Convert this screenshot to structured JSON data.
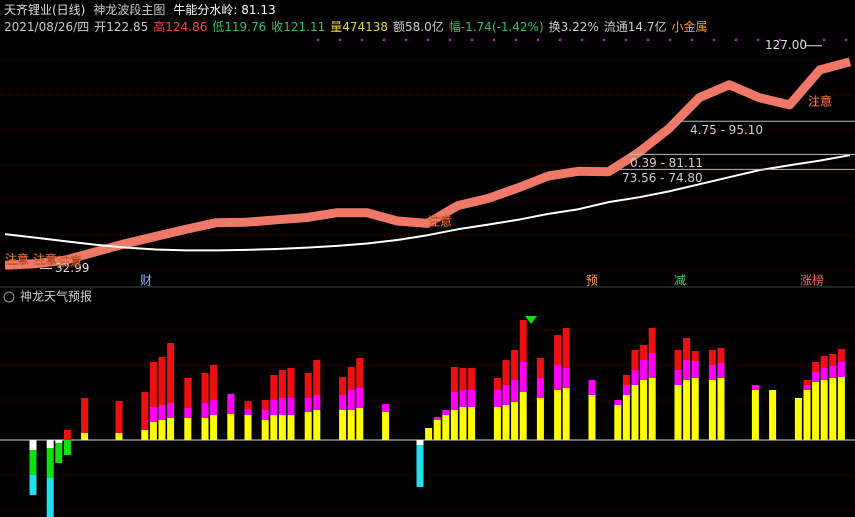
{
  "header": {
    "title": "天齐锂业(日线)",
    "indicator": "神龙波段主图",
    "threshold": "牛能分水岭: 81.13"
  },
  "info": [
    {
      "text": "2021/08/26/四",
      "color": "#cccccc"
    },
    {
      "text": "开122.85",
      "color": "#cccccc"
    },
    {
      "text": "高124.86",
      "color": "#ff4040"
    },
    {
      "text": "低119.76",
      "color": "#30c060"
    },
    {
      "text": "收121.11",
      "color": "#30c060"
    },
    {
      "text": "量474138",
      "color": "#e8d040"
    },
    {
      "text": "额58.0亿",
      "color": "#cccccc"
    },
    {
      "text": "幅-1.74(-1.42%)",
      "color": "#30c060"
    },
    {
      "text": "换3.22%",
      "color": "#cccccc"
    },
    {
      "text": "流通14.7亿",
      "color": "#cccccc"
    },
    {
      "text": "小金属",
      "color": "#ff9a30"
    }
  ],
  "chart_data": [
    {
      "type": "band-line",
      "ylim": [
        26,
        137
      ],
      "series": [
        {
          "color": "#f07868",
          "values": [
            34.3,
            35,
            36.5,
            40,
            43.5,
            46.5,
            49.5,
            52.3,
            52.5,
            53.5,
            54.5,
            56.5,
            56.5,
            53,
            52,
            59.5,
            62.5,
            67,
            72,
            74,
            73.8,
            82,
            92,
            105,
            110.5,
            105,
            102,
            116.8,
            120.2
          ]
        },
        {
          "color": "#ffffff",
          "values": [
            47.5,
            46,
            44.5,
            43,
            41.8,
            41,
            40.6,
            40.6,
            40.8,
            41.2,
            41.8,
            42.5,
            43.5,
            45,
            47,
            49.5,
            51.5,
            53.5,
            56,
            58,
            61,
            63,
            65.5,
            68.5,
            71.5,
            74.5,
            76.5,
            78.5,
            80.8
          ]
        }
      ],
      "annotations": [
        {
          "label": "127.00",
          "value": 127
        },
        {
          "label": "32.99",
          "value": 32.99
        }
      ],
      "levels": [
        {
          "label": "4.75 - 95.10",
          "value": 95.1
        },
        {
          "label": "0.39 - 81.11",
          "value": 81.11
        },
        {
          "label": "73.56 - 74.80",
          "value": 74.8
        }
      ],
      "notes": [
        "注意",
        "注意",
        "注意",
        "注意",
        "注意"
      ],
      "markers": [
        {
          "text": "财",
          "color": "#8ab4ff"
        },
        {
          "text": "预",
          "color": "#ff9a30"
        },
        {
          "text": "减",
          "color": "#40d070"
        },
        {
          "text": "涨榜",
          "color": "#ff6060"
        }
      ]
    },
    {
      "type": "stacked-bar",
      "title": "神龙天气预报",
      "ylim": [
        -77,
        140
      ],
      "x": [
        0,
        2,
        3,
        4,
        6,
        10,
        13,
        14,
        15,
        16,
        18,
        20,
        21,
        23,
        25,
        27,
        28,
        29,
        30,
        32,
        33,
        36,
        37,
        38,
        41,
        45,
        46,
        47,
        48,
        49,
        50,
        51,
        54,
        55,
        56,
        57,
        59,
        61,
        62,
        65,
        68,
        69,
        70,
        71,
        72,
        75,
        76,
        77,
        79,
        80,
        84,
        86,
        89,
        90,
        91,
        92,
        93,
        94
      ],
      "series": [
        {
          "color": "#ffff00",
          "values": [
            0,
            0,
            0,
            0,
            7,
            7,
            10,
            18,
            20,
            22,
            22,
            22,
            25,
            26,
            25,
            20,
            25,
            25,
            25,
            28,
            30,
            30,
            30,
            32,
            28,
            0,
            12,
            20,
            25,
            30,
            33,
            33,
            33,
            35,
            38,
            48,
            42,
            50,
            52,
            45,
            35,
            45,
            55,
            60,
            62,
            55,
            60,
            62,
            60,
            62,
            50,
            50,
            42,
            50,
            58,
            60,
            62,
            63
          ]
        },
        {
          "color": "#ff00ff",
          "values": [
            0,
            0,
            0,
            0,
            0,
            0,
            0,
            15,
            15,
            15,
            10,
            15,
            15,
            20,
            6,
            10,
            15,
            17,
            17,
            14,
            15,
            15,
            20,
            20,
            8,
            0,
            0,
            3,
            5,
            18,
            17,
            17,
            17,
            20,
            22,
            30,
            20,
            25,
            20,
            15,
            5,
            10,
            15,
            20,
            25,
            15,
            20,
            17,
            15,
            15,
            5,
            0,
            0,
            5,
            10,
            12,
            12,
            15
          ]
        },
        {
          "color": "#ee1010",
          "values": [
            0,
            0,
            0,
            10,
            35,
            32,
            38,
            45,
            48,
            60,
            30,
            30,
            35,
            0,
            8,
            10,
            25,
            28,
            30,
            25,
            35,
            18,
            23,
            30,
            0,
            0,
            0,
            0,
            0,
            25,
            22,
            22,
            12,
            25,
            30,
            42,
            20,
            30,
            40,
            0,
            0,
            10,
            20,
            15,
            25,
            20,
            22,
            10,
            15,
            15,
            0,
            0,
            0,
            5,
            10,
            12,
            12,
            13
          ]
        },
        {
          "color": "#ffffff",
          "values": [
            -10,
            -8,
            -3,
            0,
            0,
            0,
            0,
            0,
            0,
            0,
            0,
            0,
            0,
            0,
            0,
            0,
            0,
            0,
            0,
            0,
            0,
            0,
            0,
            0,
            0,
            -5,
            0,
            0,
            0,
            0,
            0,
            0,
            0,
            0,
            0,
            0,
            0,
            0,
            0,
            0,
            0,
            0,
            0,
            0,
            0,
            0,
            0,
            0,
            0,
            0,
            0,
            0,
            0,
            0,
            0,
            0,
            0,
            0
          ]
        },
        {
          "color": "#10e010",
          "values": [
            -25,
            -30,
            -20,
            -15,
            0,
            0,
            0,
            0,
            0,
            0,
            0,
            0,
            0,
            0,
            0,
            0,
            0,
            0,
            0,
            0,
            0,
            0,
            0,
            0,
            0,
            0,
            0,
            0,
            0,
            0,
            0,
            0,
            0,
            0,
            0,
            0,
            0,
            0,
            0,
            0,
            0,
            0,
            0,
            0,
            0,
            0,
            0,
            0,
            0,
            0,
            0,
            0,
            0,
            0,
            0,
            0,
            0,
            0
          ]
        },
        {
          "color": "#20e0f0",
          "values": [
            -20,
            -40,
            0,
            0,
            0,
            0,
            0,
            0,
            0,
            0,
            0,
            0,
            0,
            0,
            0,
            0,
            0,
            0,
            0,
            0,
            0,
            0,
            0,
            0,
            0,
            -42,
            0,
            0,
            0,
            0,
            0,
            0,
            0,
            0,
            0,
            0,
            0,
            0,
            0,
            0,
            0,
            0,
            0,
            0,
            0,
            0,
            0,
            0,
            0,
            0,
            0,
            0,
            0,
            0,
            0,
            0,
            0,
            0
          ]
        }
      ]
    }
  ]
}
